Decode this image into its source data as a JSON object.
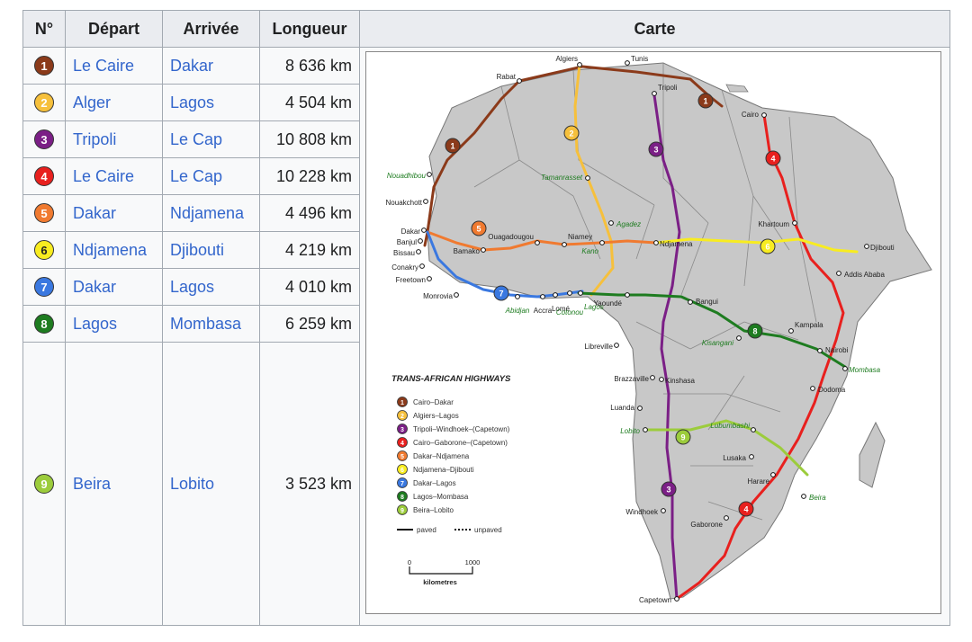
{
  "table": {
    "headers": {
      "num": "N°",
      "depart": "Départ",
      "arrivee": "Arrivée",
      "longueur": "Longueur",
      "carte": "Carte"
    },
    "rows": [
      {
        "n": "1",
        "depart": "Le Caire",
        "arrivee": "Dakar",
        "longueur": "8 636 km",
        "color": "#8b3a1a",
        "textcolor": "#ffffff"
      },
      {
        "n": "2",
        "depart": "Alger",
        "arrivee": "Lagos",
        "longueur": "4 504 km",
        "color": "#f6c03c",
        "textcolor": "#ffffff"
      },
      {
        "n": "3",
        "depart": "Tripoli",
        "arrivee": "Le Cap",
        "longueur": "10 808 km",
        "color": "#7b1f86",
        "textcolor": "#ffffff"
      },
      {
        "n": "4",
        "depart": "Le Caire",
        "arrivee": "Le Cap",
        "longueur": "10 228 km",
        "color": "#e8201e",
        "textcolor": "#ffffff"
      },
      {
        "n": "5",
        "depart": "Dakar",
        "arrivee": "Ndjamena",
        "longueur": "4 496 km",
        "color": "#f07a30",
        "textcolor": "#ffffff"
      },
      {
        "n": "6",
        "depart": "Ndjamena",
        "arrivee": "Djibouti",
        "longueur": "4 219 km",
        "color": "#f8ec20",
        "textcolor": "#222222"
      },
      {
        "n": "7",
        "depart": "Dakar",
        "arrivee": "Lagos",
        "longueur": "4 010 km",
        "color": "#3a78e0",
        "textcolor": "#ffffff"
      },
      {
        "n": "8",
        "depart": "Lagos",
        "arrivee": "Mombasa",
        "longueur": "6 259 km",
        "color": "#1e7c20",
        "textcolor": "#ffffff"
      },
      {
        "n": "9",
        "depart": "Beira",
        "arrivee": "Lobito",
        "longueur": "3 523 km",
        "color": "#9ccc3c",
        "textcolor": "#ffffff"
      }
    ]
  },
  "map": {
    "legend_title": "TRANS-AFRICAN HIGHWAYS",
    "legend": [
      {
        "n": "1",
        "label": "Cairo–Dakar"
      },
      {
        "n": "2",
        "label": "Algiers–Lagos"
      },
      {
        "n": "3",
        "label": "Tripoli–Windhoek–(Capetown)"
      },
      {
        "n": "4",
        "label": "Cairo–Gaborone–(Capetown)"
      },
      {
        "n": "5",
        "label": "Dakar–Ndjamena"
      },
      {
        "n": "6",
        "label": "Ndjamena–Djibouti"
      },
      {
        "n": "7",
        "label": "Dakar–Lagos"
      },
      {
        "n": "8",
        "label": "Lagos–Mombasa"
      },
      {
        "n": "9",
        "label": "Beira–Lobito"
      }
    ],
    "paved_label": "paved",
    "unpaved_label": "unpaved",
    "scale": {
      "zero": "0",
      "max": "1000",
      "unit": "kilometres"
    },
    "cities": {
      "algiers": "Algiers",
      "tunis": "Tunis",
      "rabat": "Rabat",
      "tripoli": "Tripoli",
      "cairo": "Cairo",
      "tamanrasset": "Tamanrasset",
      "nouadhibou": "Nouadhibou",
      "nouakchott": "Nouakchott",
      "agadez": "Agadez",
      "dakar": "Dakar",
      "banjul": "Banjul",
      "bissau": "Bissau",
      "conakry": "Conakry",
      "freetown": "Freetown",
      "monrovia": "Monrovia",
      "bamako": "Bamako",
      "ouagadougou": "Ouagadougou",
      "niamey": "Niamey",
      "kano": "Kano",
      "ndjamena": "Ndjamena",
      "khartoum": "Khartoum",
      "djibouti": "Djibouti",
      "addis": "Addis Ababa",
      "abidjan": "Abidjan",
      "accra": "Accra",
      "lome": "Lomé",
      "lagos": "Lagos",
      "cotonou": "Cotonou",
      "yaounde": "Yaoundé",
      "bangui": "Bangui",
      "kampala": "Kampala",
      "kisangani": "Kisangani",
      "nairobi": "Nairobi",
      "mombasa": "Mombasa",
      "libreville": "Libreville",
      "brazzaville": "Brazzaville",
      "kinshasa": "Kinshasa",
      "dodoma": "Dodoma",
      "luanda": "Luanda",
      "lobito": "Lobito",
      "lubumbashi": "Lubumbashi",
      "lusaka": "Lusaka",
      "harare": "Harare",
      "beira": "Beira",
      "windhoek": "Windhoek",
      "gaborone": "Gaborone",
      "capetown": "Capetown"
    }
  }
}
